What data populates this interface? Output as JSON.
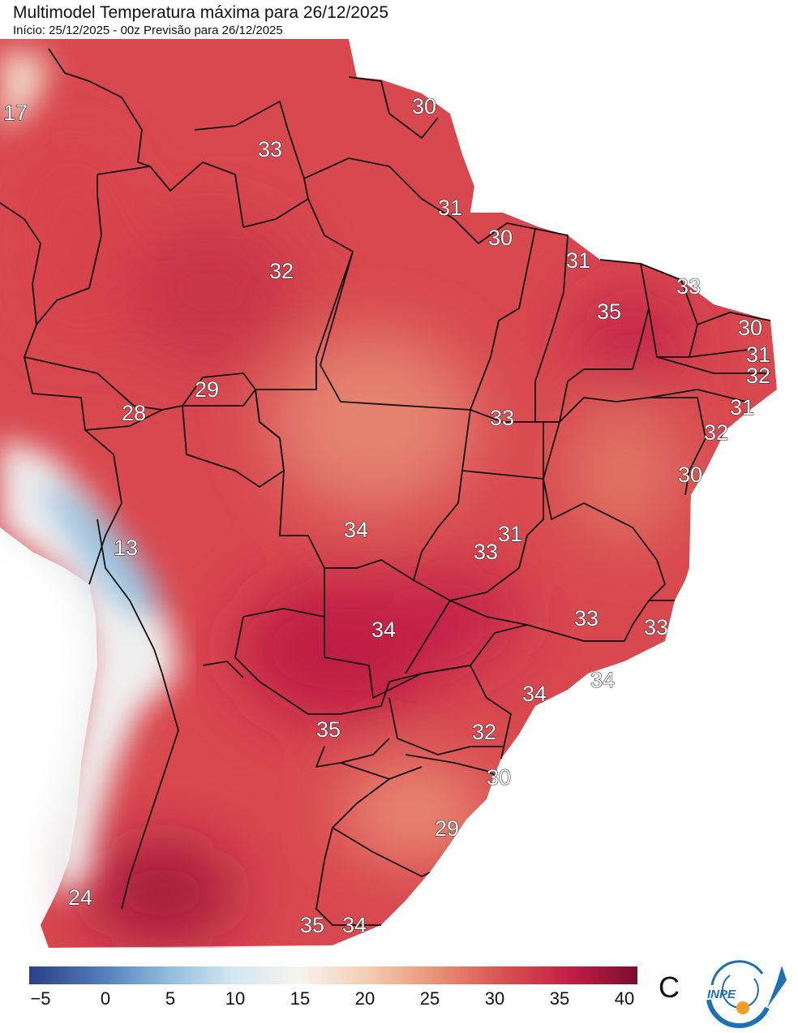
{
  "title": "Multimodel Temperatura máxima para 26/12/2025",
  "subtitle": "Início: 25/12/2025 - 00z  Previsão para 26/12/2025",
  "map": {
    "labels": [
      "17",
      "30",
      "33",
      "31",
      "30",
      "32",
      "31",
      "33",
      "35",
      "30",
      "31",
      "32",
      "31",
      "29",
      "28",
      "33",
      "32",
      "30",
      "34",
      "31",
      "33",
      "13",
      "34",
      "33",
      "33",
      "34",
      "34",
      "35",
      "32",
      "30",
      "29",
      "24",
      "35",
      "34"
    ]
  },
  "colorbar": {
    "colors": [
      "#2b3f86",
      "#4f78b8",
      "#8db9da",
      "#d4e6f0",
      "#f8f4ef",
      "#f4cdb3",
      "#e99377",
      "#d9524f",
      "#c41e46",
      "#7a0d2e"
    ],
    "ticks": [
      "−5",
      "0",
      "5",
      "10",
      "15",
      "20",
      "25",
      "30",
      "35",
      "40"
    ],
    "unit": "C"
  },
  "logo": {
    "text": "INPE"
  }
}
